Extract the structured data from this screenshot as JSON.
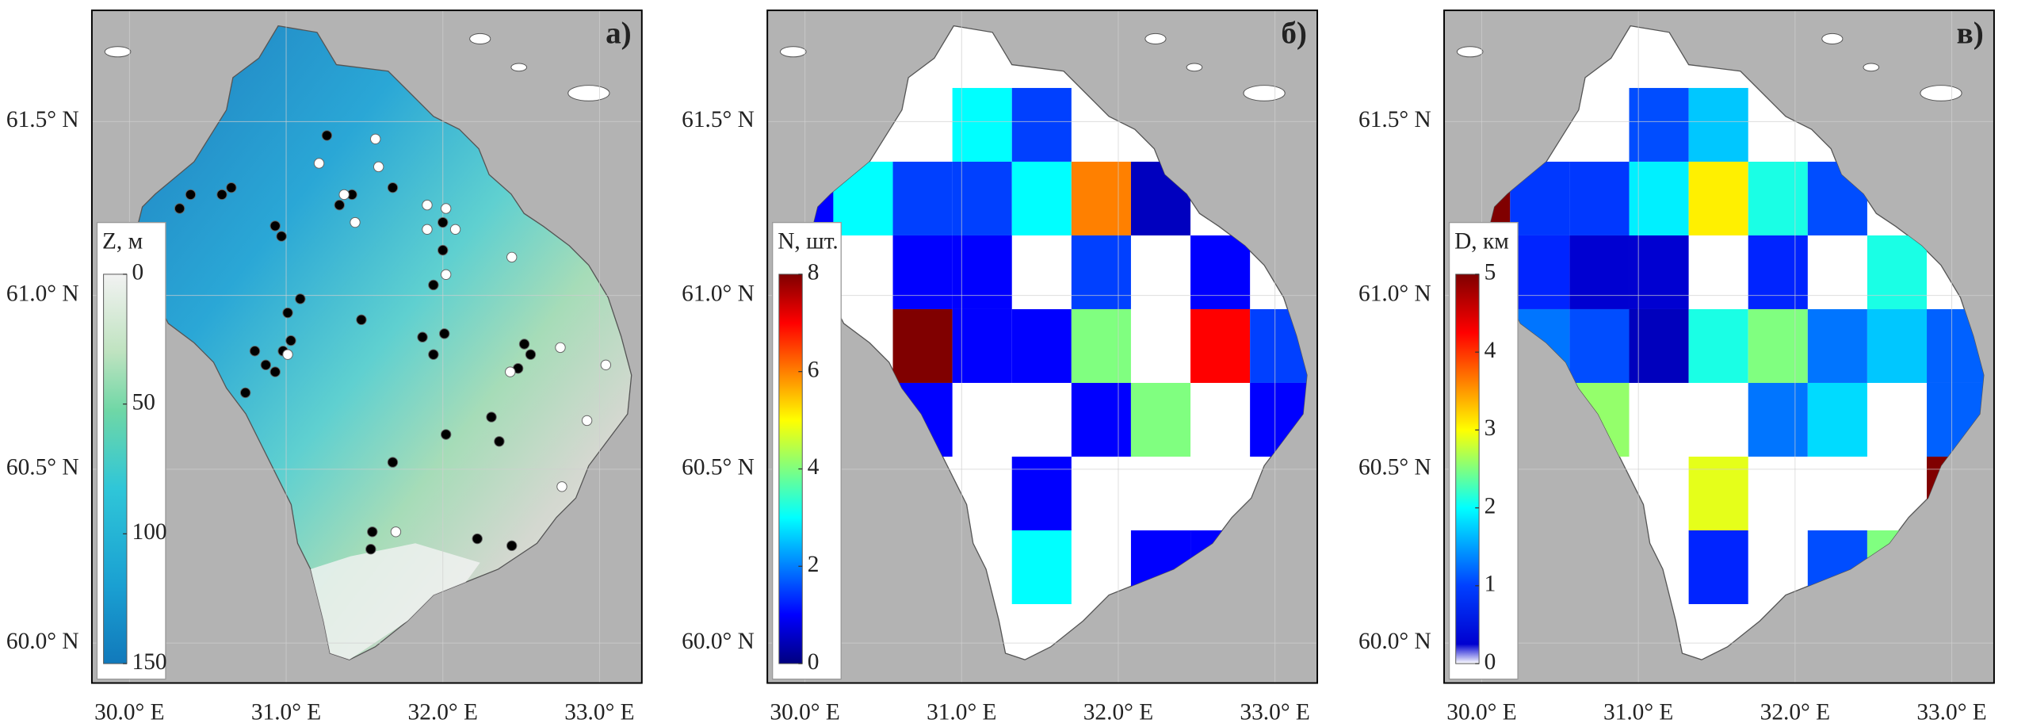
{
  "xlim": [
    29.76,
    33.27
  ],
  "ylim": [
    59.885,
    61.82
  ],
  "xticks": [
    {
      "value": 30,
      "label": "30.0° E"
    },
    {
      "value": 31,
      "label": "31.0° E"
    },
    {
      "value": 32,
      "label": "32.0° E"
    },
    {
      "value": 33,
      "label": "33.0° E"
    }
  ],
  "yticks": [
    {
      "value": 60,
      "label": "60.0° N"
    },
    {
      "value": 60.5,
      "label": "60.5° N"
    },
    {
      "value": 61,
      "label": "61.0° N"
    },
    {
      "value": 61.5,
      "label": "61.5° N"
    }
  ],
  "panels": [
    {
      "label": "а)",
      "colorbar": {
        "title": "Z, м",
        "lim": [
          0,
          150
        ],
        "ticks": [
          0,
          50,
          100,
          150
        ]
      },
      "points": [
        {
          "color": "#000000",
          "coords": [
            [
              30.32,
              61.25
            ],
            [
              30.39,
              61.29
            ],
            [
              30.59,
              61.29
            ],
            [
              30.65,
              61.31
            ],
            [
              31.26,
              61.46
            ],
            [
              31.34,
              61.26
            ],
            [
              31.42,
              61.29
            ],
            [
              31.68,
              61.31
            ],
            [
              30.93,
              61.2
            ],
            [
              30.97,
              61.17
            ],
            [
              31.09,
              60.99
            ],
            [
              31.01,
              60.95
            ],
            [
              31.48,
              60.93
            ],
            [
              30.8,
              60.84
            ],
            [
              30.87,
              60.8
            ],
            [
              30.93,
              60.78
            ],
            [
              30.98,
              60.84
            ],
            [
              31.03,
              60.87
            ],
            [
              30.74,
              60.72
            ],
            [
              31.94,
              61.03
            ],
            [
              32.0,
              61.13
            ],
            [
              32.0,
              61.21
            ],
            [
              31.87,
              60.88
            ],
            [
              31.94,
              60.83
            ],
            [
              32.01,
              60.89
            ],
            [
              32.52,
              60.86
            ],
            [
              32.56,
              60.83
            ],
            [
              32.48,
              60.79
            ],
            [
              32.31,
              60.65
            ],
            [
              32.36,
              60.58
            ],
            [
              32.02,
              60.6
            ],
            [
              31.68,
              60.52
            ],
            [
              31.55,
              60.32
            ],
            [
              31.54,
              60.27
            ],
            [
              32.22,
              60.3
            ],
            [
              32.44,
              60.28
            ]
          ]
        },
        {
          "color": "#ffffff",
          "coords": [
            [
              31.57,
              61.45
            ],
            [
              31.21,
              61.38
            ],
            [
              31.59,
              61.37
            ],
            [
              31.37,
              61.29
            ],
            [
              31.44,
              61.21
            ],
            [
              31.9,
              61.26
            ],
            [
              32.02,
              61.25
            ],
            [
              32.08,
              61.19
            ],
            [
              31.9,
              61.19
            ],
            [
              32.02,
              61.06
            ],
            [
              32.44,
              61.11
            ],
            [
              31.01,
              60.83
            ],
            [
              32.75,
              60.85
            ],
            [
              32.43,
              60.78
            ],
            [
              33.04,
              60.8
            ],
            [
              32.92,
              60.64
            ],
            [
              32.76,
              60.45
            ],
            [
              31.7,
              60.32
            ]
          ]
        }
      ]
    },
    {
      "label": "б)",
      "colorbar": {
        "title": "N, шт.",
        "lim": [
          8,
          0
        ],
        "ticks": [
          0,
          2,
          4,
          6,
          8
        ]
      },
      "grid": [
        [
          null,
          null,
          null,
          3,
          1.5,
          null,
          null,
          null,
          null
        ],
        [
          1,
          3,
          1.5,
          1.5,
          3,
          6,
          0.5,
          null,
          null
        ],
        [
          null,
          null,
          1,
          1,
          null,
          1.5,
          null,
          1,
          null
        ],
        [
          null,
          null,
          8,
          1,
          1,
          4,
          null,
          7,
          1.5
        ],
        [
          null,
          null,
          1,
          null,
          null,
          1,
          4,
          null,
          1
        ],
        [
          null,
          null,
          null,
          null,
          1,
          null,
          null,
          null,
          null
        ],
        [
          null,
          null,
          null,
          null,
          3,
          null,
          1,
          1,
          null
        ]
      ]
    },
    {
      "label": "в)",
      "colorbar": {
        "title": "D, км",
        "lim": [
          5,
          0
        ],
        "ticks": [
          0,
          1,
          2,
          3,
          4,
          5
        ]
      },
      "grid": [
        [
          null,
          null,
          null,
          1,
          1.6,
          null,
          null,
          null,
          null
        ],
        [
          5,
          0.9,
          0.9,
          1.8,
          3.2,
          2,
          1,
          null,
          null
        ],
        [
          null,
          0.8,
          0.4,
          0.4,
          null,
          0.8,
          null,
          2,
          null
        ],
        [
          null,
          1.2,
          1,
          0.3,
          2,
          2.5,
          1.2,
          1.6,
          1.1
        ],
        [
          null,
          null,
          2.6,
          null,
          null,
          1.2,
          1.7,
          null,
          1.1
        ],
        [
          null,
          null,
          null,
          null,
          3,
          null,
          null,
          null,
          5
        ],
        [
          null,
          null,
          null,
          null,
          0.8,
          null,
          1,
          2.5,
          null
        ]
      ]
    }
  ]
}
